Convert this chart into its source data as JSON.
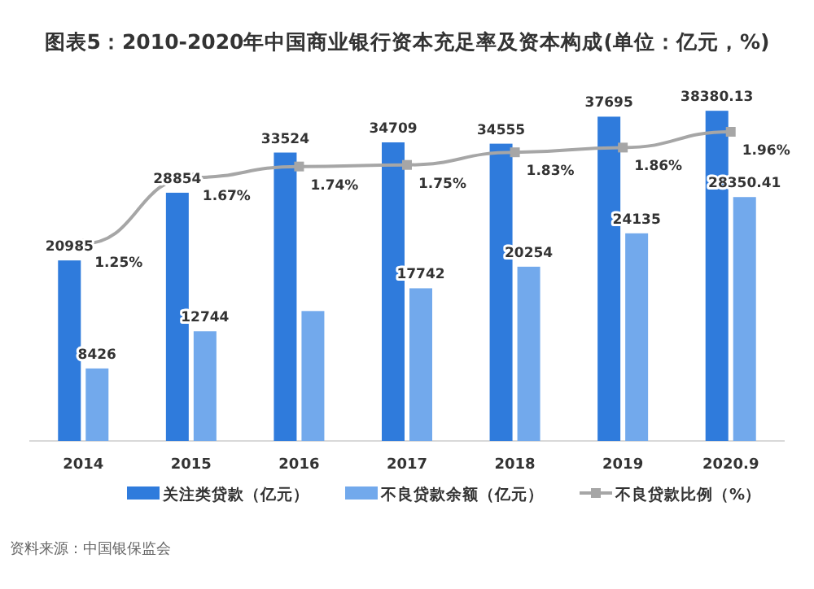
{
  "chart_data": {
    "type": "bar",
    "title": "图表5：2010-2020年中国商业银行资本充足率及资本构成(单位：亿元，%)",
    "categories": [
      "2014",
      "2015",
      "2016",
      "2017",
      "2018",
      "2019",
      "2020.9"
    ],
    "series": [
      {
        "name": "关注类贷款（亿元）",
        "color": "#2f7bdc",
        "values": [
          20985,
          28854,
          33524,
          34709,
          34555,
          37695,
          38380.13
        ],
        "value_labels": [
          "20985",
          "28854",
          "33524",
          "34709",
          "34555",
          "37695",
          "38380.13"
        ]
      },
      {
        "name": "不良贷款余额（亿元）",
        "color": "#72a9ec",
        "values": [
          8426,
          12744,
          15100,
          17742,
          20254,
          24135,
          28350.41
        ],
        "value_labels": [
          "8426",
          "12744",
          null,
          "17742",
          "20254",
          "24135",
          "28350.41"
        ]
      },
      {
        "name": "不良贷款比例（%）",
        "type": "line",
        "axis": "y2",
        "color": "#a6a6a6",
        "marker": "square",
        "values": [
          1.25,
          1.67,
          1.74,
          1.75,
          1.83,
          1.86,
          1.96
        ],
        "value_labels": [
          "1.25%",
          "1.67%",
          "1.74%",
          "1.75%",
          "1.83%",
          "1.86%",
          "1.96%"
        ]
      }
    ],
    "legend": "bottom",
    "annotations": [
      "资料来源：中国银保监会"
    ]
  }
}
